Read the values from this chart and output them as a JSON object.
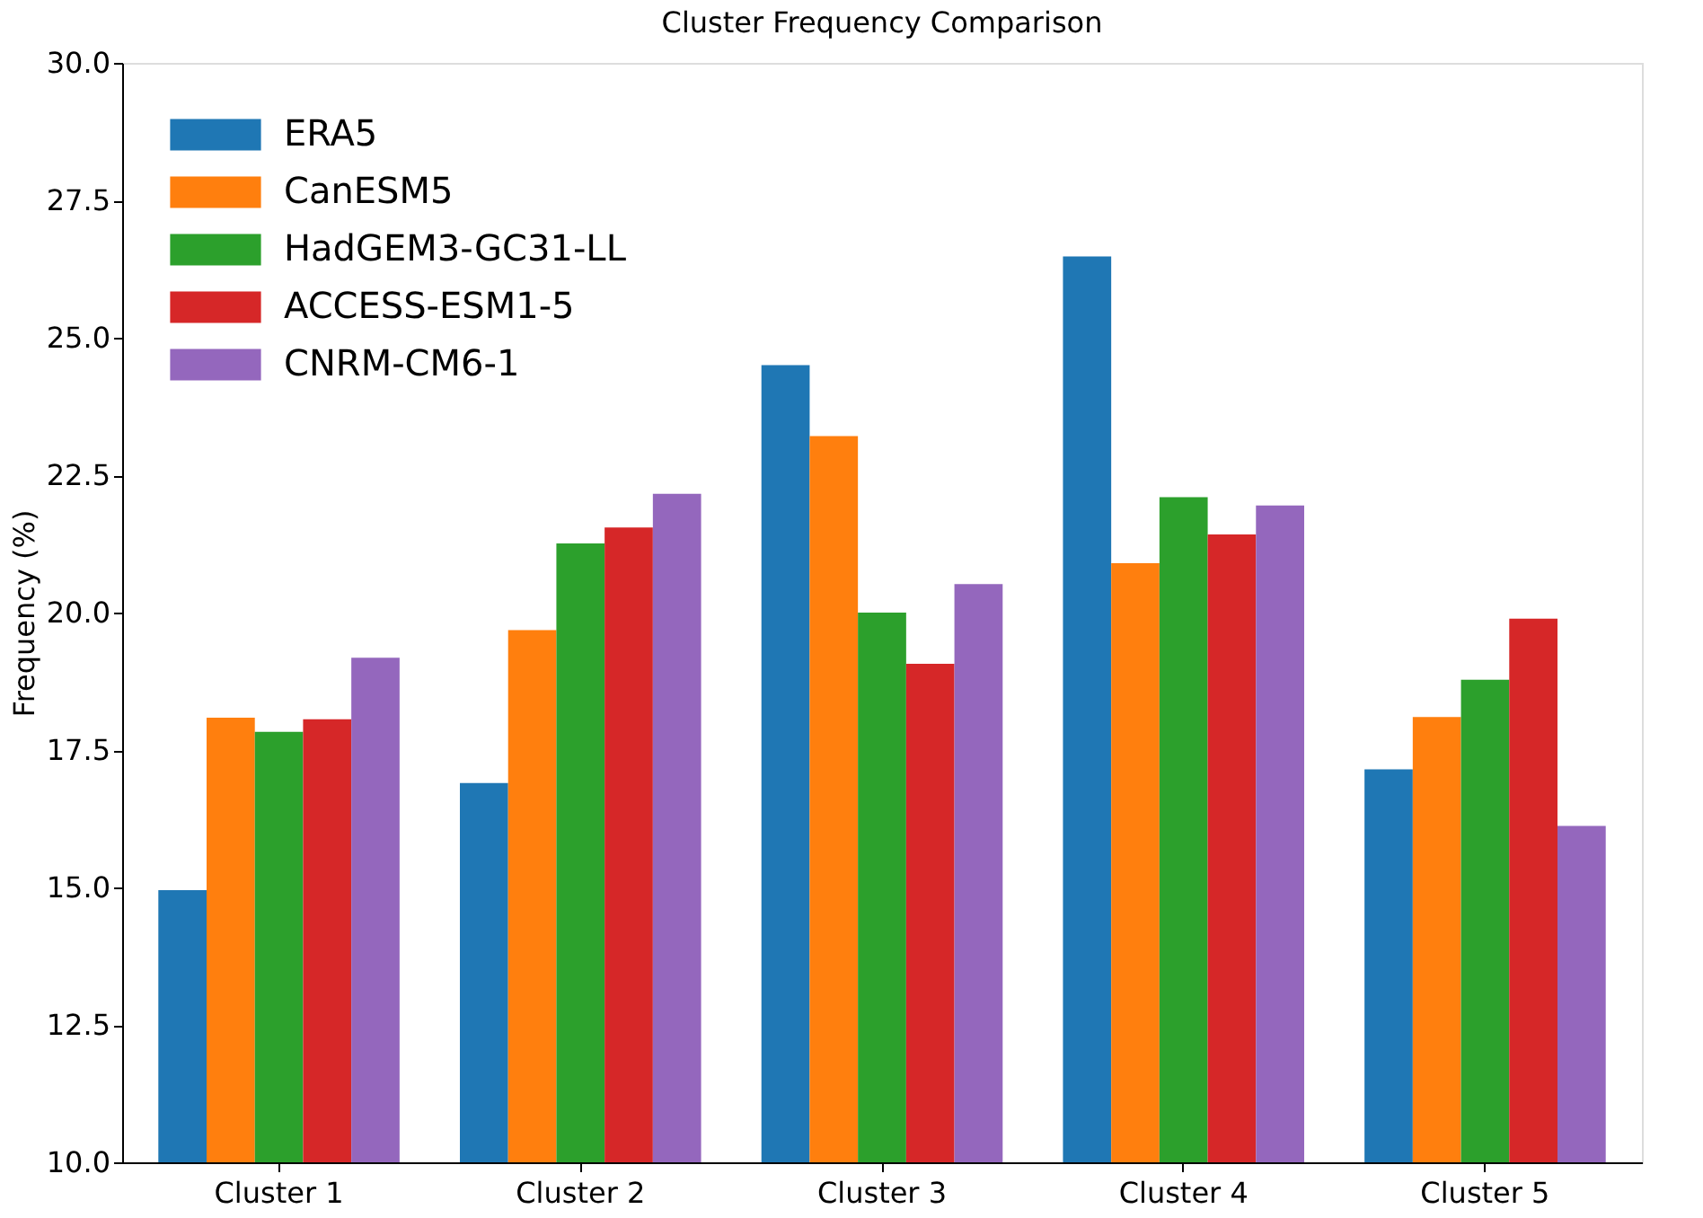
{
  "chart_data": {
    "type": "bar",
    "title": "Cluster Frequency Comparison",
    "ylabel": "Frequency (%)",
    "categories": [
      "Cluster 1",
      "Cluster 2",
      "Cluster 3",
      "Cluster 4",
      "Cluster 5"
    ],
    "series": [
      {
        "name": "ERA5",
        "color": "#1f77b4",
        "values": [
          14.95,
          16.9,
          24.5,
          26.48,
          17.15
        ]
      },
      {
        "name": "CanESM5",
        "color": "#ff7f0e",
        "values": [
          18.09,
          19.68,
          23.21,
          20.9,
          18.1
        ]
      },
      {
        "name": "HadGEM3-GC31-LL",
        "color": "#2ca02c",
        "values": [
          17.83,
          21.26,
          20.0,
          22.1,
          18.78
        ]
      },
      {
        "name": "ACCESS-ESM1-5",
        "color": "#d62728",
        "values": [
          18.06,
          21.55,
          19.07,
          21.42,
          19.89
        ]
      },
      {
        "name": "CNRM-CM6-1",
        "color": "#9467bd",
        "values": [
          19.18,
          22.16,
          20.52,
          21.95,
          16.12
        ]
      }
    ],
    "ylim": [
      10.0,
      30.0
    ],
    "yticks": [
      {
        "value": 10,
        "label": "10.0"
      },
      {
        "value": 12.5,
        "label": "12.5"
      },
      {
        "value": 15,
        "label": "15.0"
      },
      {
        "value": 17.5,
        "label": "17.5"
      },
      {
        "value": 20,
        "label": "20.0"
      },
      {
        "value": 22.5,
        "label": "22.5"
      },
      {
        "value": 25,
        "label": "25.0"
      },
      {
        "value": 27.5,
        "label": "27.5"
      },
      {
        "value": 30,
        "label": "30.0"
      }
    ],
    "grid": false,
    "legend": "top left"
  }
}
